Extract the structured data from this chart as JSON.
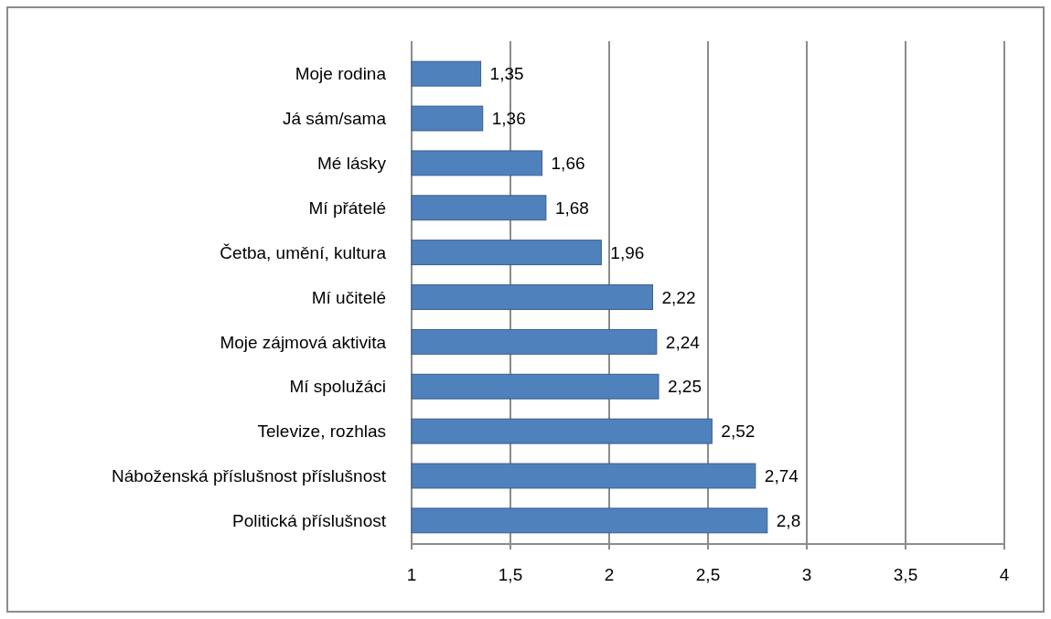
{
  "chart_data": {
    "type": "bar",
    "orientation": "horizontal",
    "categories": [
      "Moje rodina",
      "Já sám/sama",
      "Mé lásky",
      "Mí přátelé",
      "Četba, umění, kultura",
      "Mí učitelé",
      "Moje zájmová aktivita",
      "Mí spolužáci",
      "Televize, rozhlas",
      "Náboženská příslušnost příslušnost",
      "Politická příslušnost"
    ],
    "values": [
      1.35,
      1.36,
      1.66,
      1.68,
      1.96,
      2.22,
      2.24,
      2.25,
      2.52,
      2.74,
      2.8
    ],
    "value_labels": [
      "1,35",
      "1,36",
      "1,66",
      "1,68",
      "1,96",
      "2,22",
      "2,24",
      "2,25",
      "2,52",
      "2,74",
      "2,8"
    ],
    "color": "#4f81bd",
    "xlim": [
      1,
      4
    ],
    "xticks": [
      1,
      {
        "value": 1.5,
        "label": "1,5"
      },
      2,
      {
        "value": 2.5,
        "label": "2,5"
      },
      3,
      {
        "value": 3.5,
        "label": "3,5"
      },
      4
    ],
    "grid": "x"
  }
}
